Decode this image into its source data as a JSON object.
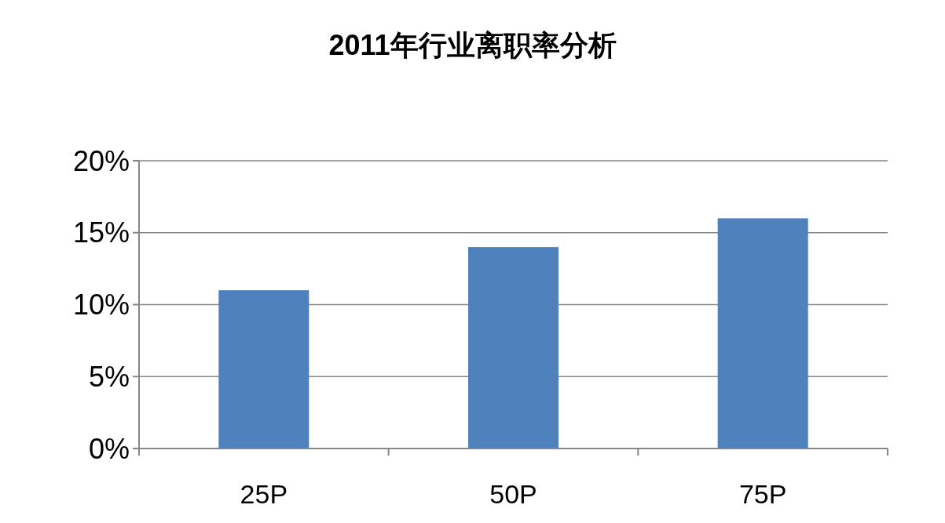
{
  "chart_data": {
    "type": "bar",
    "title": "2011年行业离职率分析",
    "categories": [
      "25P",
      "50P",
      "75P"
    ],
    "values": [
      11,
      14,
      16
    ],
    "color": "#4f81bd",
    "ylim": [
      0,
      20
    ],
    "yticks": [
      {
        "value": 0,
        "label": "0%"
      },
      {
        "value": 5,
        "label": "5%"
      },
      {
        "value": 10,
        "label": "10%"
      },
      {
        "value": 15,
        "label": "15%"
      },
      {
        "value": 20,
        "label": "20%"
      }
    ],
    "grid": "y"
  }
}
